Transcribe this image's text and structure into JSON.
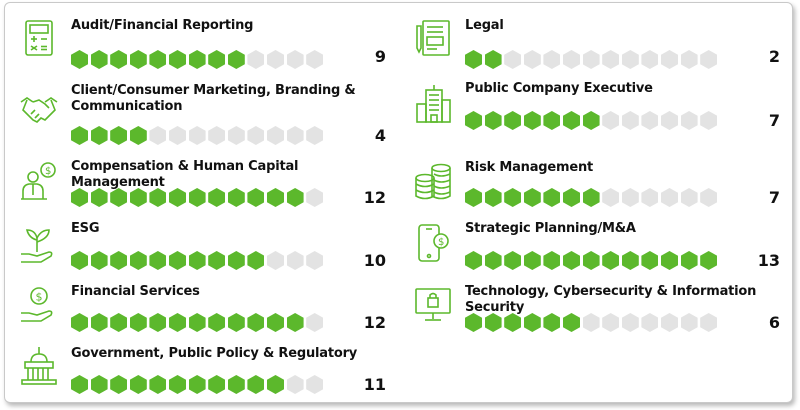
{
  "total_hexagons": 13,
  "colors": {
    "filled": "#5cb82c",
    "empty": "#e3e3e3",
    "icon": "#5cb82c",
    "text": "#111111"
  },
  "skills": [
    {
      "label": "Audit/Financial Reporting",
      "count": "9",
      "filled": 9,
      "icon": "calculator-icon"
    },
    {
      "label": "Client/Consumer Marketing, Branding & Communication",
      "count": "4",
      "filled": 4,
      "icon": "handshake-icon"
    },
    {
      "label": "Compensation & Human Capital Management",
      "count": "12",
      "filled": 12,
      "icon": "person-money-icon"
    },
    {
      "label": "ESG",
      "count": "10",
      "filled": 10,
      "icon": "plant-in-hand-icon"
    },
    {
      "label": "Financial Services",
      "count": "12",
      "filled": 12,
      "icon": "money-in-hand-icon"
    },
    {
      "label": "Government, Public Policy & Regulatory",
      "count": "11",
      "filled": 11,
      "icon": "capitol-building-icon"
    },
    {
      "label": "Legal",
      "count": "2",
      "filled": 2,
      "icon": "legal-document-icon"
    },
    {
      "label": "Public Company Executive",
      "count": "7",
      "filled": 7,
      "icon": "office-building-icon"
    },
    {
      "label": "Risk Management",
      "count": "7",
      "filled": 7,
      "icon": "coin-stack-icon"
    },
    {
      "label": "Strategic Planning/M&A",
      "count": "13",
      "filled": 13,
      "icon": "mobile-dollar-icon"
    },
    {
      "label": "Technology, Cybersecurity & Information Security",
      "count": "6",
      "filled": 6,
      "icon": "monitor-lock-icon"
    }
  ]
}
